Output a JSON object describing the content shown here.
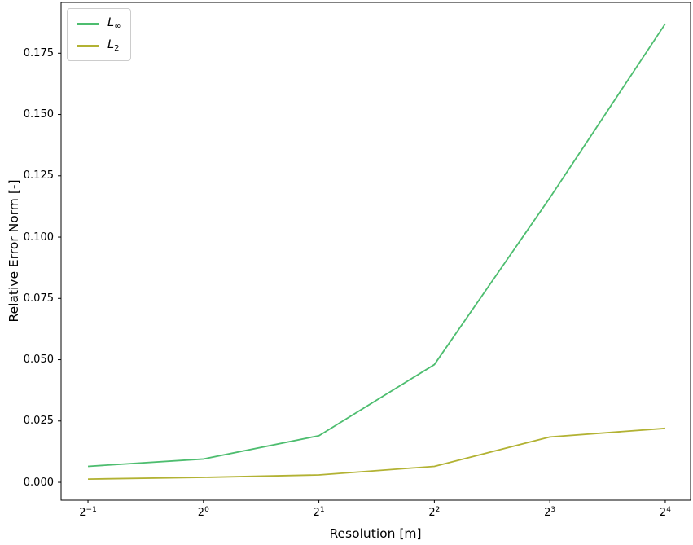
{
  "chart_data": {
    "type": "line",
    "title": "",
    "xlabel": "Resolution [m]",
    "ylabel": "Relative Error Norm [-]",
    "x_scale": "log2",
    "x_tick_base": "2",
    "x_tick_exponents": [
      "-1",
      "0",
      "1",
      "2",
      "3",
      "4"
    ],
    "x": [
      -1,
      0,
      1,
      2,
      3,
      4
    ],
    "y_tick_labels": [
      "0.000",
      "0.025",
      "0.050",
      "0.075",
      "0.100",
      "0.125",
      "0.150",
      "0.175"
    ],
    "y_tick_values": [
      0.0,
      0.025,
      0.05,
      0.075,
      0.1,
      0.125,
      0.15,
      0.175
    ],
    "xlim": [
      -1.233,
      4.219
    ],
    "ylim": [
      -0.0073,
      0.1957
    ],
    "grid": false,
    "legend_position": "upper left",
    "axis_color": "#000000",
    "series": [
      {
        "name": "L-infinity",
        "label_main": "L",
        "label_sub": "∞",
        "color": "#4dbd6f",
        "values": [
          0.0065,
          0.0095,
          0.019,
          0.048,
          0.116,
          0.187
        ]
      },
      {
        "name": "L-2",
        "label_main": "L",
        "label_sub": "2",
        "color": "#b2b233",
        "values": [
          0.0013,
          0.002,
          0.003,
          0.0065,
          0.0185,
          0.022
        ]
      }
    ]
  }
}
